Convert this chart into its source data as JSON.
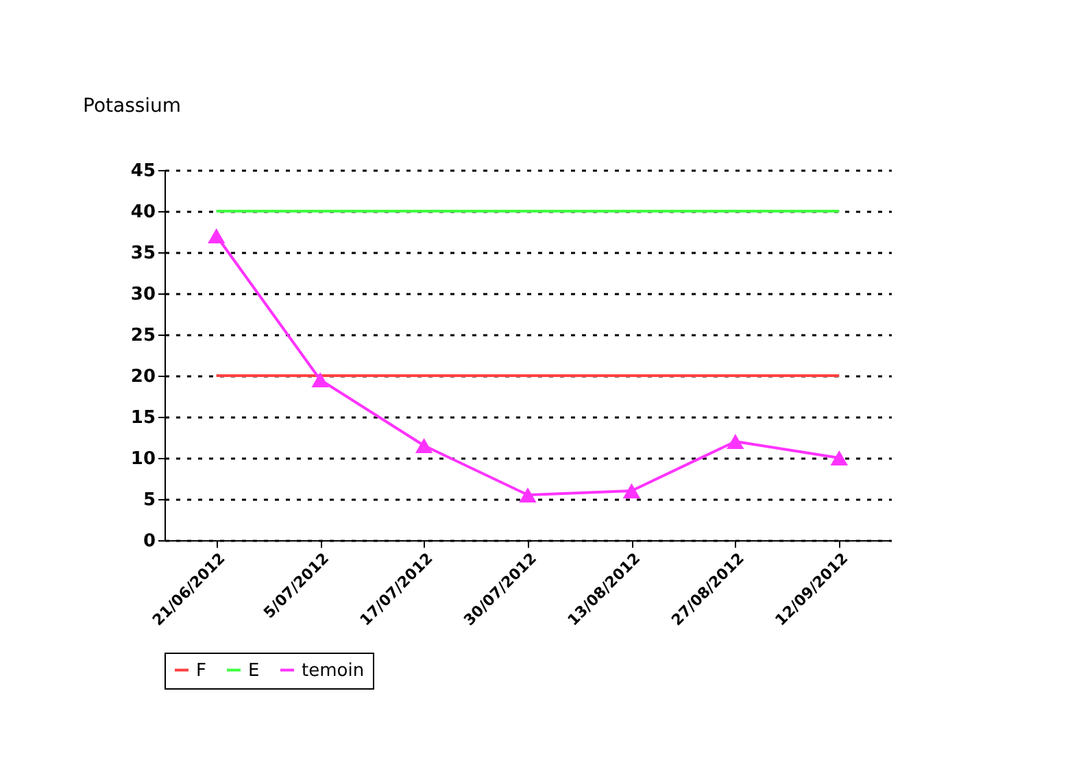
{
  "chart_data": {
    "type": "line",
    "ylabel": "Potassium",
    "categories": [
      "21/06/2012",
      "5/07/2012",
      "17/07/2012",
      "30/07/2012",
      "13/08/2012",
      "27/08/2012",
      "12/09/2012"
    ],
    "series": [
      {
        "name": "F",
        "color": "#ff4040",
        "marker": "none",
        "values": [
          20,
          20,
          20,
          20,
          20,
          20,
          20
        ]
      },
      {
        "name": "E",
        "color": "#40ff40",
        "marker": "none",
        "values": [
          40,
          40,
          40,
          40,
          40,
          40,
          40
        ]
      },
      {
        "name": "temoin",
        "color": "#ff33ff",
        "marker": "triangle",
        "values": [
          37,
          19.5,
          11.5,
          5.5,
          6,
          12,
          10
        ]
      }
    ],
    "ylim": [
      0,
      45
    ],
    "yticks": [
      0,
      5,
      10,
      15,
      20,
      25,
      30,
      35,
      40,
      45
    ],
    "grid": "y",
    "legend": "bottom",
    "line_style": "solid"
  }
}
